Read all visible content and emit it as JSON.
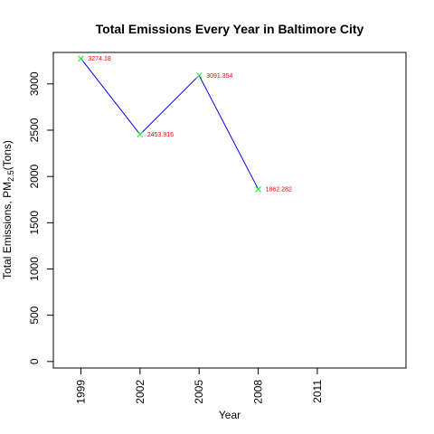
{
  "chart_data": {
    "type": "line",
    "title": "Total Emissions Every Year in Baltimore City",
    "xlabel": "Year",
    "ylabel_prefix": "Total Emissions, PM",
    "ylabel_sub": "2.5",
    "ylabel_suffix": "(Tons)",
    "x_ticks": [
      "1999",
      "2002",
      "2005",
      "2008",
      "2011"
    ],
    "y_ticks": [
      "0",
      "500",
      "1000",
      "1500",
      "2000",
      "2500",
      "3000"
    ],
    "xlim": [
      1997.6,
      2015.5
    ],
    "ylim": [
      -70,
      3340
    ],
    "series": [
      {
        "x": [
          1999,
          2002,
          2005,
          2008
        ],
        "values": [
          3274.18,
          2453.916,
          3091.354,
          1862.282
        ],
        "data_labels": [
          "3274.18",
          "2453.916",
          "3091.354",
          "1862.282"
        ],
        "line_color": "#0000ff",
        "marker_color": "#00ff00",
        "label_color": "#ff0000"
      }
    ],
    "grid": false,
    "legend": "none"
  }
}
